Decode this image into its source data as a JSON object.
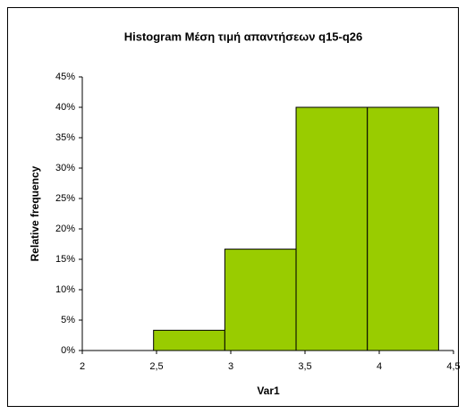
{
  "chart_data": {
    "type": "histogram",
    "title": "Histogram Μέση τιμή απαντήσεων q15-q26",
    "x_label": "Var1",
    "y_label": "Relative frequency",
    "bins": [
      2,
      2.48,
      2.96,
      3.44,
      3.92,
      4.4
    ],
    "counts": [
      0,
      3.33,
      16.67,
      40,
      40
    ],
    "color": "#99cc00",
    "xlim": [
      2,
      4.5
    ],
    "xticks": [
      2,
      {
        "value": 2.5,
        "label": "2,5"
      },
      3,
      {
        "value": 3.5,
        "label": "3,5"
      },
      4,
      {
        "value": 4.5,
        "label": "4,5"
      }
    ],
    "ylim": [
      0,
      45
    ],
    "yticks": [
      {
        "value": 0,
        "label": "0%"
      },
      {
        "value": 5,
        "label": "5%"
      },
      {
        "value": 10,
        "label": "10%"
      },
      {
        "value": 15,
        "label": "15%"
      },
      {
        "value": 20,
        "label": "20%"
      },
      {
        "value": 25,
        "label": "25%"
      },
      {
        "value": 30,
        "label": "30%"
      },
      {
        "value": 35,
        "label": "35%"
      },
      {
        "value": 40,
        "label": "40%"
      },
      {
        "value": 45,
        "label": "45%"
      }
    ]
  }
}
